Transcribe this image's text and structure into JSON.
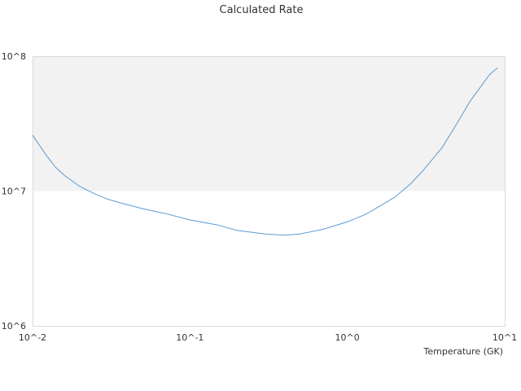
{
  "chart_data": {
    "type": "line",
    "title": "Calculated Rate",
    "xlabel": "Temperature (GK)",
    "ylabel": "",
    "x_scale": "log",
    "y_scale": "log",
    "xlim": [
      0.01,
      10
    ],
    "ylim": [
      1000000,
      100000000
    ],
    "x_tick_labels": [
      "10^-2",
      "10^-1",
      "10^0",
      "10^1"
    ],
    "y_tick_labels": [
      "10^6",
      "10^7",
      "10^8"
    ],
    "grid": false,
    "legend": "none",
    "shaded_band": {
      "y_from": 10000000,
      "y_to": 100000000,
      "color": "#f2f2f2"
    },
    "colors": {
      "series": "#5b9bd5",
      "band": "#f2f2f2",
      "border": "#d9d9d9"
    },
    "series": [
      {
        "x": [
          0.01,
          0.012,
          0.014,
          0.016,
          0.018,
          0.02,
          0.025,
          0.03,
          0.04,
          0.05,
          0.07,
          0.1,
          0.15,
          0.2,
          0.3,
          0.4,
          0.5,
          0.7,
          1.0,
          1.3,
          1.6,
          2.0,
          2.5,
          3.0,
          4.0,
          5.0,
          6.0,
          8.0,
          9.0
        ],
        "y": [
          26000000,
          19000000,
          15000000,
          13000000,
          11800000,
          10800000,
          9500000,
          8700000,
          7900000,
          7400000,
          6800000,
          6100000,
          5600000,
          5100000,
          4800000,
          4700000,
          4800000,
          5200000,
          5900000,
          6700000,
          7700000,
          9000000,
          11200000,
          14000000,
          21000000,
          32000000,
          46000000,
          73000000,
          82000000
        ]
      }
    ]
  }
}
